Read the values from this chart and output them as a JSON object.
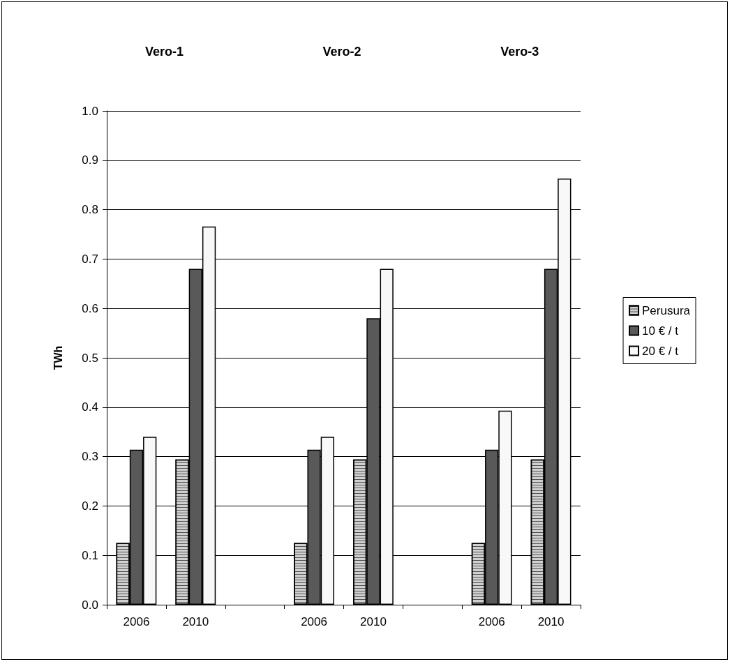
{
  "chart_data": {
    "type": "bar",
    "ylabel": "TWh",
    "categories": [
      "2006",
      "2010",
      null,
      "2006",
      "2010",
      null,
      "2006",
      "2010"
    ],
    "annotations": [
      "Vero-1",
      "Vero-2",
      "Vero-3"
    ],
    "series": [
      {
        "name": "Perusura",
        "color": "#d0d0d0",
        "values": [
          0.125,
          0.294,
          null,
          0.125,
          0.294,
          null,
          0.125,
          0.294
        ]
      },
      {
        "name": "10 € / t",
        "color": "#595959",
        "values": [
          0.314,
          0.68,
          null,
          0.314,
          0.58,
          null,
          0.314,
          0.68
        ]
      },
      {
        "name": "20 € / t",
        "color": "#f8f8f8",
        "values": [
          0.34,
          0.766,
          null,
          0.34,
          0.68,
          null,
          0.393,
          0.863
        ]
      }
    ],
    "ylim": [
      0,
      1
    ],
    "yticks": [
      {
        "value": 0,
        "label": "0.0"
      },
      0.1,
      0.2,
      0.3,
      0.4,
      0.5,
      0.6,
      0.7,
      0.8,
      0.9,
      {
        "value": 1,
        "label": "1.0"
      }
    ],
    "grid": "y",
    "legend": "right"
  }
}
